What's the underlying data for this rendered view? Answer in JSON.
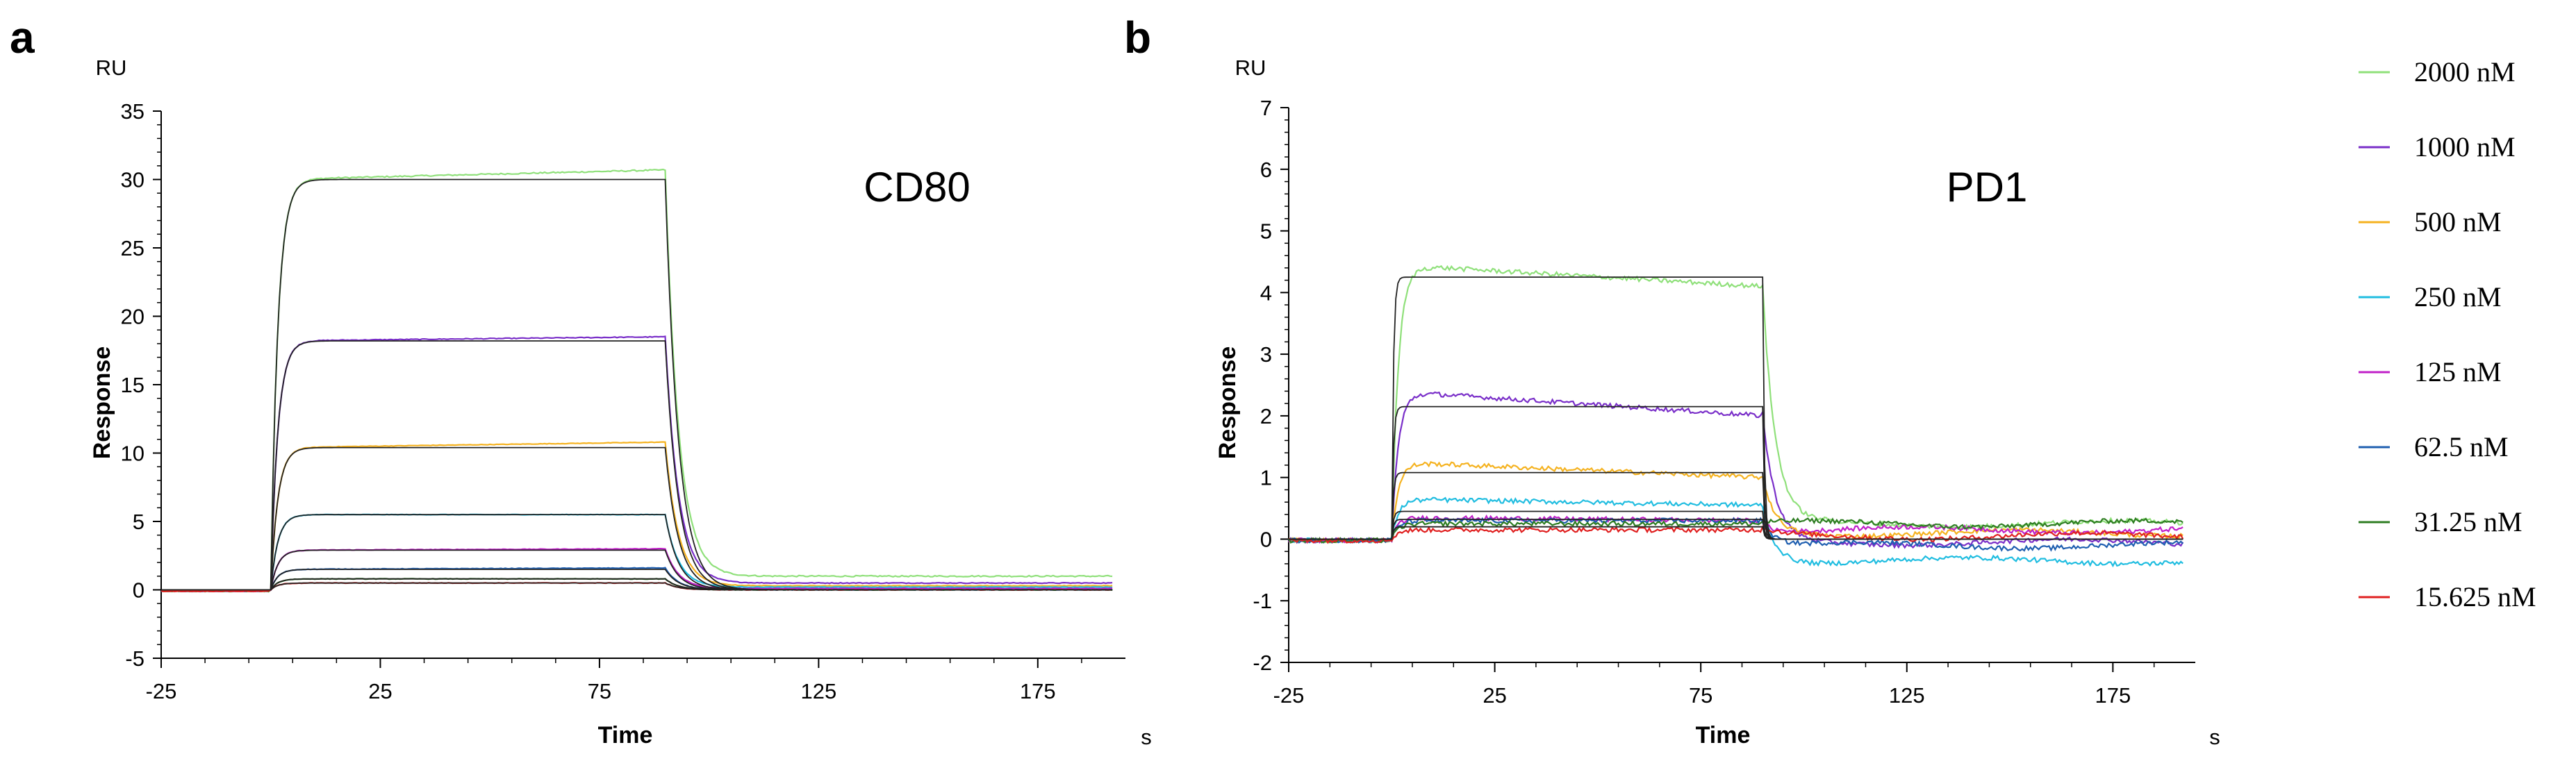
{
  "chart_data": [
    {
      "panel": "a",
      "type": "line",
      "y_unit": "RU",
      "x_unit": "s",
      "xlabel": "Time",
      "ylabel": "Response",
      "annotation": "CD80",
      "xlim": [
        -25,
        195
      ],
      "ylim": [
        -5,
        35
      ],
      "x_ticks": [
        -25,
        25,
        75,
        125,
        175
      ],
      "y_ticks": [
        -5,
        0,
        5,
        10,
        15,
        20,
        25,
        30,
        35
      ],
      "association_start": 0,
      "dissociation_start": 90,
      "series": [
        {
          "name": "2000 nM",
          "color": "#8fe07a",
          "plateau": 30.0,
          "end": 30.7,
          "residual": 1.0
        },
        {
          "name": "1000 nM",
          "color": "#7a2fc9",
          "plateau": 18.2,
          "end": 18.5,
          "residual": 0.5
        },
        {
          "name": "500 nM",
          "color": "#f5b21f",
          "plateau": 10.4,
          "end": 10.8,
          "residual": 0.3
        },
        {
          "name": "250 nM",
          "color": "#20bde0",
          "plateau": 5.5,
          "end": 5.5,
          "residual": 0.2
        },
        {
          "name": "125 nM",
          "color": "#c020c8",
          "plateau": 2.9,
          "end": 3.0,
          "residual": 0.1
        },
        {
          "name": "62.5 nM",
          "color": "#1f5fb0",
          "plateau": 1.5,
          "end": 1.6,
          "residual": 0.0
        },
        {
          "name": "31.25 nM",
          "color": "#2e7d22",
          "plateau": 0.8,
          "end": 0.8,
          "residual": 0.0
        },
        {
          "name": "15.625 nM",
          "color": "#e02020",
          "plateau": 0.5,
          "end": 0.5,
          "residual": 0.0
        }
      ]
    },
    {
      "panel": "b",
      "type": "line",
      "y_unit": "RU",
      "x_unit": "s",
      "xlabel": "Time",
      "ylabel": "Response",
      "annotation": "PD1",
      "xlim": [
        -25,
        195
      ],
      "ylim": [
        -2,
        7
      ],
      "x_ticks": [
        -25,
        25,
        75,
        125,
        175
      ],
      "y_ticks": [
        -2,
        -1,
        0,
        1,
        2,
        3,
        4,
        5,
        6,
        7
      ],
      "association_start": 0,
      "dissociation_start": 90,
      "fit_levels": [
        4.25,
        2.15,
        1.08,
        0.45,
        0.32,
        0.2
      ],
      "series": [
        {
          "name": "2000 nM",
          "color": "#8fe07a",
          "plateau": 4.45,
          "end": 4.1,
          "residual": 0.25
        },
        {
          "name": "1000 nM",
          "color": "#7a2fc9",
          "plateau": 2.4,
          "end": 2.0,
          "residual": -0.05
        },
        {
          "name": "500 nM",
          "color": "#f5b21f",
          "plateau": 1.25,
          "end": 1.0,
          "residual": 0.1
        },
        {
          "name": "250 nM",
          "color": "#20bde0",
          "plateau": 0.65,
          "end": 0.55,
          "residual": -0.35
        },
        {
          "name": "125 nM",
          "color": "#c020c8",
          "plateau": 0.35,
          "end": 0.3,
          "residual": 0.15
        },
        {
          "name": "62.5 nM",
          "color": "#1f5fb0",
          "plateau": 0.3,
          "end": 0.3,
          "residual": -0.1
        },
        {
          "name": "31.25 nM",
          "color": "#2e7d22",
          "plateau": 0.25,
          "end": 0.25,
          "residual": 0.25
        },
        {
          "name": "15.625 nM",
          "color": "#e02020",
          "plateau": 0.15,
          "end": 0.15,
          "residual": 0.05
        }
      ]
    }
  ],
  "legend": {
    "entries": [
      {
        "label": "2000 nM",
        "color": "#8fe07a"
      },
      {
        "label": "1000 nM",
        "color": "#7a2fc9"
      },
      {
        "label": "500 nM",
        "color": "#f5b21f"
      },
      {
        "label": "250 nM",
        "color": "#20bde0"
      },
      {
        "label": "125 nM",
        "color": "#c020c8"
      },
      {
        "label": "62.5 nM",
        "color": "#1f5fb0"
      },
      {
        "label": "31.25 nM",
        "color": "#2e7d22"
      },
      {
        "label": "15.625 nM",
        "color": "#e02020"
      }
    ]
  },
  "fit_color": "#222222"
}
